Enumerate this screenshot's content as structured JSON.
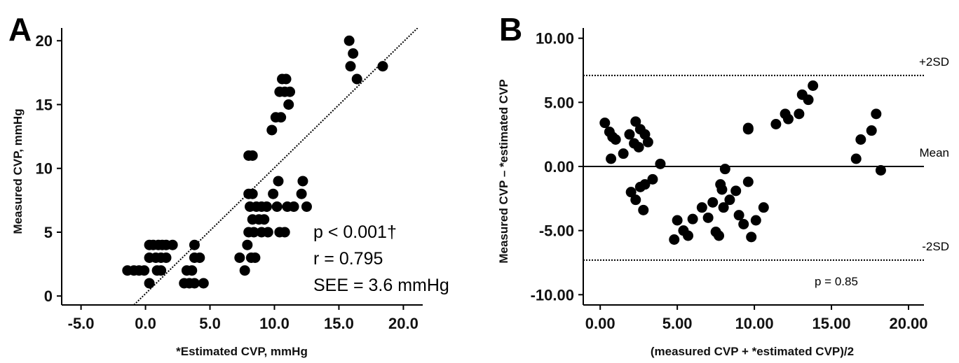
{
  "chart_data": [
    {
      "type": "scatter",
      "panel_label": "A",
      "xlabel": "*Estimated CVP, mmHg",
      "ylabel": "Measured CVP, mmHg",
      "xlim": [
        -6.5,
        21.5
      ],
      "ylim": [
        -0.7,
        21
      ],
      "xticks": [
        -5,
        0,
        5,
        10,
        15,
        20
      ],
      "xtick_labels": [
        "-5.0",
        "0.0",
        "5.0",
        "10.0",
        "15.0",
        "20.0"
      ],
      "yticks": [
        0,
        5,
        10,
        15,
        20
      ],
      "ytick_labels": [
        "0",
        "5",
        "10",
        "15",
        "20"
      ],
      "regression_line": {
        "style": "dotted",
        "from": [
          -1.2,
          -1
        ],
        "to": [
          21.1,
          21
        ]
      },
      "annotations": [
        "p < 0.001†",
        "r = 0.795",
        "SEE = 3.6 mmHg"
      ],
      "points": [
        [
          -1.4,
          2
        ],
        [
          -0.9,
          2
        ],
        [
          -0.5,
          2
        ],
        [
          -0.1,
          2
        ],
        [
          0.3,
          4
        ],
        [
          0.6,
          4
        ],
        [
          1.0,
          4
        ],
        [
          1.3,
          4
        ],
        [
          1.6,
          4
        ],
        [
          2.1,
          4
        ],
        [
          0.3,
          3
        ],
        [
          0.8,
          3
        ],
        [
          1.2,
          3
        ],
        [
          1.6,
          3
        ],
        [
          0.9,
          2
        ],
        [
          1.2,
          2
        ],
        [
          0.3,
          1
        ],
        [
          3.8,
          4
        ],
        [
          3.2,
          2
        ],
        [
          3.6,
          2
        ],
        [
          3.8,
          3
        ],
        [
          4.2,
          3
        ],
        [
          3.0,
          1
        ],
        [
          3.4,
          1
        ],
        [
          3.8,
          1
        ],
        [
          4.5,
          1
        ],
        [
          7.3,
          3
        ],
        [
          7.7,
          2
        ],
        [
          7.9,
          4
        ],
        [
          8.2,
          3
        ],
        [
          8.5,
          3
        ],
        [
          8.0,
          5
        ],
        [
          8.4,
          5
        ],
        [
          9.0,
          5
        ],
        [
          9.5,
          5
        ],
        [
          8.3,
          6
        ],
        [
          8.8,
          6
        ],
        [
          9.2,
          6
        ],
        [
          8.1,
          7
        ],
        [
          8.6,
          7
        ],
        [
          9.0,
          7
        ],
        [
          9.4,
          7
        ],
        [
          10.2,
          7
        ],
        [
          8.0,
          8
        ],
        [
          8.3,
          8
        ],
        [
          9.9,
          8
        ],
        [
          10.3,
          9
        ],
        [
          8.0,
          11
        ],
        [
          8.3,
          11
        ],
        [
          9.8,
          13
        ],
        [
          10.1,
          14
        ],
        [
          10.5,
          14
        ],
        [
          10.4,
          16
        ],
        [
          10.8,
          16
        ],
        [
          11.2,
          16
        ],
        [
          10.6,
          17
        ],
        [
          10.9,
          17
        ],
        [
          11.1,
          15
        ],
        [
          10.4,
          5
        ],
        [
          10.8,
          5
        ],
        [
          11.0,
          7
        ],
        [
          11.5,
          7
        ],
        [
          12.1,
          8
        ],
        [
          12.2,
          9
        ],
        [
          12.5,
          7
        ],
        [
          15.8,
          20
        ],
        [
          16.1,
          19
        ],
        [
          15.9,
          18
        ],
        [
          16.4,
          17
        ],
        [
          18.4,
          18
        ]
      ]
    },
    {
      "type": "scatter",
      "panel_label": "B",
      "xlabel": "(measured CVP + *estimated CVP)/2",
      "ylabel": "Measured CVP – *estimated CVP",
      "xlim": [
        -1.1,
        21.0
      ],
      "ylim": [
        -10.8,
        10.8
      ],
      "xticks": [
        0,
        5,
        10,
        15,
        20
      ],
      "xtick_labels": [
        "0.00",
        "5.00",
        "10.00",
        "15.00",
        "20.00"
      ],
      "yticks": [
        10,
        5,
        0,
        -5,
        -10
      ],
      "ytick_labels": [
        "10.00",
        "5.00",
        "0.00",
        "-5.00",
        "-10.00"
      ],
      "reference_lines": [
        {
          "label": "+2SD",
          "y": 7.1,
          "style": "dotted"
        },
        {
          "label": "Mean",
          "y": 0,
          "style": "solid"
        },
        {
          "label": "-2SD",
          "y": -7.3,
          "style": "dotted"
        }
      ],
      "annotations": [
        "p = 0.85"
      ],
      "points": [
        [
          0.3,
          3.4
        ],
        [
          0.6,
          2.7
        ],
        [
          0.8,
          2.3
        ],
        [
          1.0,
          2.1
        ],
        [
          0.7,
          0.6
        ],
        [
          1.5,
          1.0
        ],
        [
          1.9,
          2.5
        ],
        [
          2.2,
          1.8
        ],
        [
          2.3,
          3.5
        ],
        [
          2.5,
          1.5
        ],
        [
          2.6,
          2.9
        ],
        [
          2.9,
          2.5
        ],
        [
          3.1,
          1.9
        ],
        [
          2.0,
          -2.0
        ],
        [
          2.3,
          -2.6
        ],
        [
          2.6,
          -1.6
        ],
        [
          2.9,
          -1.4
        ],
        [
          2.8,
          -3.4
        ],
        [
          3.4,
          -1.0
        ],
        [
          3.9,
          0.2
        ],
        [
          4.8,
          -5.7
        ],
        [
          5.0,
          -4.2
        ],
        [
          5.4,
          -5.0
        ],
        [
          5.7,
          -5.4
        ],
        [
          6.0,
          -4.1
        ],
        [
          6.6,
          -3.2
        ],
        [
          7.0,
          -4.0
        ],
        [
          7.3,
          -2.8
        ],
        [
          7.5,
          -5.1
        ],
        [
          7.7,
          -5.4
        ],
        [
          7.8,
          -1.4
        ],
        [
          7.9,
          -1.8
        ],
        [
          8.1,
          -0.2
        ],
        [
          8.0,
          -3.2
        ],
        [
          8.4,
          -2.6
        ],
        [
          8.8,
          -1.9
        ],
        [
          9.0,
          -3.8
        ],
        [
          9.3,
          -4.5
        ],
        [
          9.6,
          -1.2
        ],
        [
          9.8,
          -5.5
        ],
        [
          10.1,
          -4.2
        ],
        [
          10.6,
          -3.2
        ],
        [
          9.6,
          2.9
        ],
        [
          9.6,
          3.0
        ],
        [
          11.4,
          3.3
        ],
        [
          12.0,
          4.1
        ],
        [
          12.2,
          3.7
        ],
        [
          12.9,
          4.1
        ],
        [
          13.1,
          5.6
        ],
        [
          13.5,
          5.2
        ],
        [
          13.8,
          6.3
        ],
        [
          16.6,
          0.6
        ],
        [
          16.9,
          2.1
        ],
        [
          17.6,
          2.8
        ],
        [
          17.9,
          4.1
        ],
        [
          18.2,
          -0.3
        ]
      ]
    }
  ]
}
